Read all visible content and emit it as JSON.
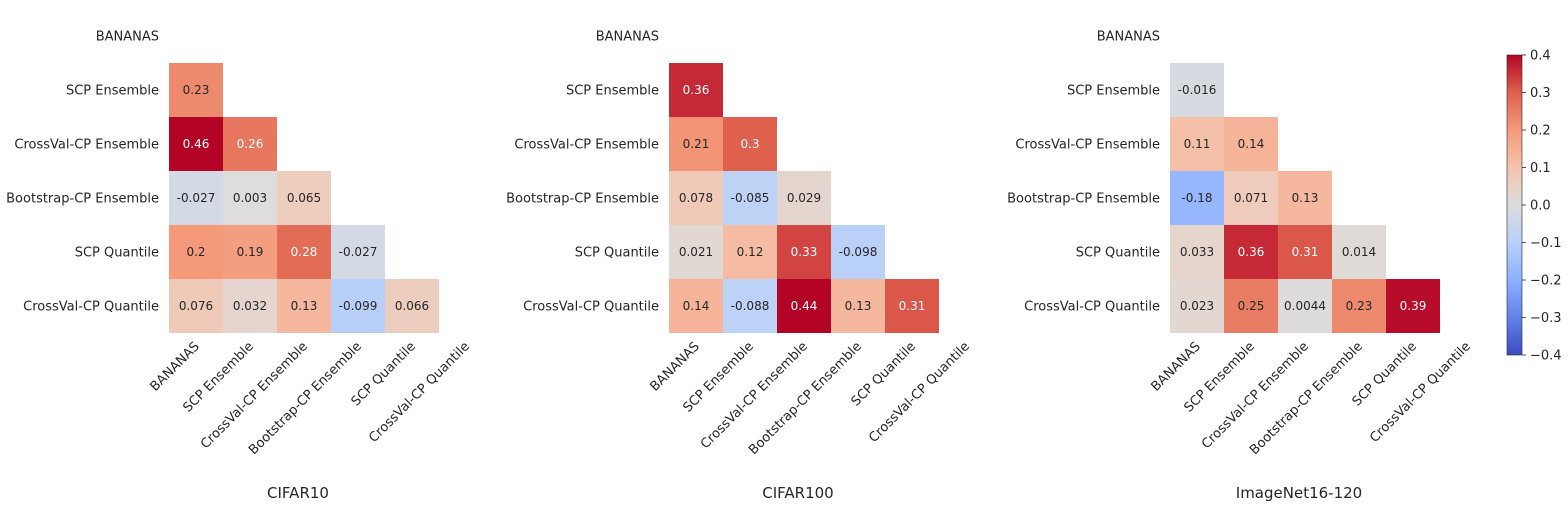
{
  "chart_data": {
    "type": "heatmap",
    "subtype": "lower-triangular correlation matrices",
    "labels": [
      "BANANAS",
      "SCP Ensemble",
      "CrossVal-CP Ensemble",
      "Bootstrap-CP Ensemble",
      "SCP Quantile",
      "CrossVal-CP Quantile"
    ],
    "colormap": "coolwarm",
    "vmin": -0.4,
    "vmax": 0.4,
    "colorbar": {
      "ticks": [
        0.4,
        0.3,
        0.2,
        0.1,
        0.0,
        -0.1,
        -0.2,
        -0.3,
        -0.4
      ],
      "tick_labels": [
        "0.4",
        "0.3",
        "0.2",
        "0.1",
        "0.0",
        "−0.1",
        "−0.2",
        "−0.3",
        "−0.4"
      ]
    },
    "panels": [
      {
        "title": "CIFAR10",
        "cells": [
          [],
          [
            {
              "v": 0.23,
              "label": "0.23"
            }
          ],
          [
            {
              "v": 0.46,
              "label": "0.46"
            },
            {
              "v": 0.26,
              "label": "0.26"
            }
          ],
          [
            {
              "v": -0.027,
              "label": "-0.027"
            },
            {
              "v": 0.003,
              "label": "0.003"
            },
            {
              "v": 0.065,
              "label": "0.065"
            }
          ],
          [
            {
              "v": 0.2,
              "label": "0.2"
            },
            {
              "v": 0.19,
              "label": "0.19"
            },
            {
              "v": 0.28,
              "label": "0.28"
            },
            {
              "v": -0.027,
              "label": "-0.027"
            }
          ],
          [
            {
              "v": 0.076,
              "label": "0.076"
            },
            {
              "v": 0.032,
              "label": "0.032"
            },
            {
              "v": 0.13,
              "label": "0.13"
            },
            {
              "v": -0.099,
              "label": "-0.099"
            },
            {
              "v": 0.066,
              "label": "0.066"
            }
          ]
        ]
      },
      {
        "title": "CIFAR100",
        "cells": [
          [],
          [
            {
              "v": 0.36,
              "label": "0.36"
            }
          ],
          [
            {
              "v": 0.21,
              "label": "0.21"
            },
            {
              "v": 0.3,
              "label": "0.3"
            }
          ],
          [
            {
              "v": 0.078,
              "label": "0.078"
            },
            {
              "v": -0.085,
              "label": "-0.085"
            },
            {
              "v": 0.029,
              "label": "0.029"
            }
          ],
          [
            {
              "v": 0.021,
              "label": "0.021"
            },
            {
              "v": 0.12,
              "label": "0.12"
            },
            {
              "v": 0.33,
              "label": "0.33"
            },
            {
              "v": -0.098,
              "label": "-0.098"
            }
          ],
          [
            {
              "v": 0.14,
              "label": "0.14"
            },
            {
              "v": -0.088,
              "label": "-0.088"
            },
            {
              "v": 0.44,
              "label": "0.44"
            },
            {
              "v": 0.13,
              "label": "0.13"
            },
            {
              "v": 0.31,
              "label": "0.31"
            }
          ]
        ]
      },
      {
        "title": "ImageNet16-120",
        "cells": [
          [],
          [
            {
              "v": -0.016,
              "label": "-0.016"
            }
          ],
          [
            {
              "v": 0.11,
              "label": "0.11"
            },
            {
              "v": 0.14,
              "label": "0.14"
            }
          ],
          [
            {
              "v": -0.18,
              "label": "-0.18"
            },
            {
              "v": 0.071,
              "label": "0.071"
            },
            {
              "v": 0.13,
              "label": "0.13"
            }
          ],
          [
            {
              "v": 0.033,
              "label": "0.033"
            },
            {
              "v": 0.36,
              "label": "0.36"
            },
            {
              "v": 0.31,
              "label": "0.31"
            },
            {
              "v": 0.014,
              "label": "0.014"
            }
          ],
          [
            {
              "v": 0.023,
              "label": "0.023"
            },
            {
              "v": 0.25,
              "label": "0.25"
            },
            {
              "v": 0.0044,
              "label": "0.0044"
            },
            {
              "v": 0.23,
              "label": "0.23"
            },
            {
              "v": 0.39,
              "label": "0.39"
            }
          ]
        ]
      }
    ]
  }
}
